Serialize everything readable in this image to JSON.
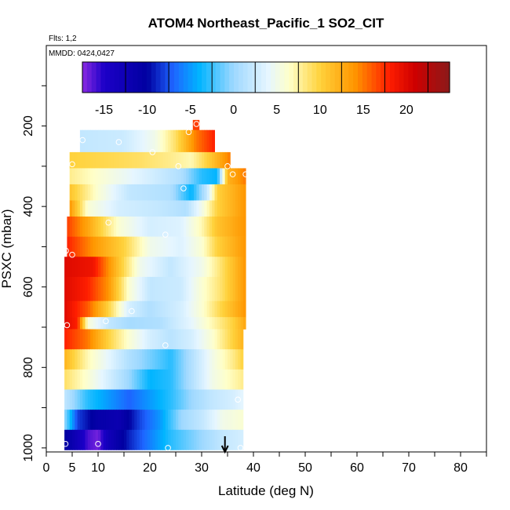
{
  "chart_data": {
    "type": "heatmap",
    "title": "ATOM4 Northeast_Pacific_1 SO2_CIT",
    "flights_text": "Flts: 1,2",
    "dates_text": "MMDD: 0424,0427",
    "xlabel": "Latitude (deg N)",
    "ylabel": "PSXC (mbar)",
    "xlim": [
      0,
      85
    ],
    "ylim": [
      1010,
      0
    ],
    "x_ticks": [
      0,
      5,
      10,
      20,
      30,
      40,
      50,
      60,
      70,
      80
    ],
    "y_ticks": [
      200,
      400,
      600,
      800,
      1000
    ],
    "colorbar": {
      "range": [
        -17.5,
        25
      ],
      "ticks": [
        -15,
        -10,
        -5,
        0,
        5,
        10,
        15,
        20
      ],
      "colors": [
        {
          "value": -17.5,
          "color": "#8a2be2"
        },
        {
          "value": -15,
          "color": "#1c00c8"
        },
        {
          "value": -10,
          "color": "#0000a0"
        },
        {
          "value": -7,
          "color": "#1e64ff"
        },
        {
          "value": -4,
          "color": "#00b4ff"
        },
        {
          "value": 0,
          "color": "#9ed8ff"
        },
        {
          "value": 4,
          "color": "#e6f6ff"
        },
        {
          "value": 6.5,
          "color": "#ffffc8"
        },
        {
          "value": 10,
          "color": "#ffd23c"
        },
        {
          "value": 14,
          "color": "#ff9600"
        },
        {
          "value": 18,
          "color": "#ff1e00"
        },
        {
          "value": 21,
          "color": "#cd0000"
        },
        {
          "value": 25,
          "color": "#8b1a1a"
        }
      ]
    },
    "rows": [
      {
        "p": [
          185,
          210
        ],
        "x": [
          28.3,
          29.5
        ],
        "v": [
          [
            28.3,
            17
          ]
        ]
      },
      {
        "p": [
          210,
          265
        ],
        "x": [
          6.5,
          32.5
        ],
        "v": [
          [
            6.5,
            2
          ],
          [
            15,
            2.5
          ],
          [
            21,
            5
          ],
          [
            25,
            9
          ],
          [
            29,
            15
          ],
          [
            32.5,
            18
          ]
        ]
      },
      {
        "p": [
          265,
          305
        ],
        "x": [
          4.5,
          35.5
        ],
        "v": [
          [
            4.5,
            10
          ],
          [
            12,
            9.5
          ],
          [
            18,
            9
          ],
          [
            24,
            8
          ],
          [
            28,
            7
          ],
          [
            32,
            11
          ],
          [
            35.5,
            15
          ]
        ]
      },
      {
        "p": [
          305,
          345
        ],
        "x": [
          4.5,
          38.5
        ],
        "v": [
          [
            4.5,
            8
          ],
          [
            12,
            5.5
          ],
          [
            20,
            3
          ],
          [
            26,
            1
          ],
          [
            30,
            -3
          ],
          [
            33,
            -4
          ],
          [
            35,
            12
          ],
          [
            38.5,
            15
          ]
        ]
      },
      {
        "p": [
          345,
          385
        ],
        "x": [
          4.5,
          38.5
        ],
        "v": [
          [
            4.5,
            11
          ],
          [
            10,
            6
          ],
          [
            16,
            2
          ],
          [
            24,
            1
          ],
          [
            28,
            -4
          ],
          [
            31,
            2
          ],
          [
            33,
            10
          ],
          [
            38.5,
            14
          ]
        ]
      },
      {
        "p": [
          385,
          425
        ],
        "x": [
          4.5,
          38.5
        ],
        "v": [
          [
            4.5,
            14
          ],
          [
            8,
            6
          ],
          [
            14,
            3
          ],
          [
            22,
            2
          ],
          [
            27,
            1
          ],
          [
            30,
            5
          ],
          [
            33,
            10
          ],
          [
            38.5,
            14
          ]
        ]
      },
      {
        "p": [
          425,
          475
        ],
        "x": [
          4,
          38.5
        ],
        "v": [
          [
            4,
            17
          ],
          [
            8,
            13
          ],
          [
            14,
            6
          ],
          [
            20,
            3
          ],
          [
            26,
            3.5
          ],
          [
            30,
            7
          ],
          [
            33,
            11
          ],
          [
            38.5,
            14
          ]
        ]
      },
      {
        "p": [
          475,
          525
        ],
        "x": [
          4,
          38.5
        ],
        "v": [
          [
            4,
            18
          ],
          [
            9,
            14
          ],
          [
            15,
            10
          ],
          [
            20,
            5
          ],
          [
            26,
            3.5
          ],
          [
            30,
            6
          ],
          [
            33,
            10
          ],
          [
            38.5,
            14
          ]
        ]
      },
      {
        "p": [
          525,
          575
        ],
        "x": [
          3.5,
          38.5
        ],
        "v": [
          [
            3.5,
            20
          ],
          [
            9,
            19
          ],
          [
            14,
            11
          ],
          [
            18,
            5
          ],
          [
            24,
            2
          ],
          [
            30,
            5
          ],
          [
            34,
            9
          ],
          [
            38.5,
            14
          ]
        ]
      },
      {
        "p": [
          575,
          635
        ],
        "x": [
          3.5,
          38.5
        ],
        "v": [
          [
            3.5,
            20
          ],
          [
            8,
            18
          ],
          [
            12,
            14
          ],
          [
            16,
            6
          ],
          [
            20,
            2
          ],
          [
            26,
            2.5
          ],
          [
            30,
            6
          ],
          [
            34,
            9
          ],
          [
            38.5,
            14
          ]
        ]
      },
      {
        "p": [
          635,
          675
        ],
        "x": [
          3.5,
          38.5
        ],
        "v": [
          [
            3.5,
            20
          ],
          [
            8,
            16
          ],
          [
            12,
            10
          ],
          [
            16,
            3
          ],
          [
            20,
            1
          ],
          [
            26,
            3
          ],
          [
            30,
            6
          ],
          [
            34,
            10
          ],
          [
            38.5,
            14
          ]
        ]
      },
      {
        "p": [
          675,
          705
        ],
        "x": [
          3.5,
          38.5
        ],
        "v": [
          [
            3.5,
            20
          ],
          [
            6,
            18
          ],
          [
            8,
            6
          ],
          [
            10,
            4
          ],
          [
            12,
            2
          ],
          [
            16,
            0.5
          ],
          [
            22,
            1
          ],
          [
            28,
            4
          ],
          [
            32,
            7
          ],
          [
            36,
            10
          ],
          [
            38.5,
            13
          ]
        ]
      },
      {
        "p": [
          705,
          755
        ],
        "x": [
          3.5,
          38
        ],
        "v": [
          [
            3.5,
            18
          ],
          [
            8,
            15
          ],
          [
            12,
            10
          ],
          [
            16,
            6
          ],
          [
            20,
            3
          ],
          [
            24,
            1.5
          ],
          [
            28,
            3
          ],
          [
            32,
            6
          ],
          [
            36,
            10
          ],
          [
            38,
            12
          ]
        ]
      },
      {
        "p": [
          755,
          805
        ],
        "x": [
          3.5,
          38
        ],
        "v": [
          [
            3.5,
            12
          ],
          [
            8,
            7
          ],
          [
            12,
            4
          ],
          [
            16,
            1
          ],
          [
            20,
            -1
          ],
          [
            24,
            -3
          ],
          [
            28,
            1
          ],
          [
            32,
            5
          ],
          [
            36,
            8
          ],
          [
            38,
            10
          ]
        ]
      },
      {
        "p": [
          805,
          855
        ],
        "x": [
          3.5,
          38
        ],
        "v": [
          [
            3.5,
            9
          ],
          [
            8,
            6
          ],
          [
            12,
            3
          ],
          [
            16,
            0
          ],
          [
            20,
            -4
          ],
          [
            24,
            -3
          ],
          [
            28,
            1
          ],
          [
            32,
            5
          ],
          [
            36,
            7
          ],
          [
            38,
            8
          ]
        ]
      },
      {
        "p": [
          855,
          905
        ],
        "x": [
          3.5,
          38
        ],
        "v": [
          [
            3.5,
            2
          ],
          [
            8,
            -3
          ],
          [
            12,
            -5
          ],
          [
            16,
            -7
          ],
          [
            20,
            -5
          ],
          [
            24,
            -3
          ],
          [
            28,
            0
          ],
          [
            32,
            2
          ],
          [
            36,
            3
          ],
          [
            38,
            4
          ]
        ]
      },
      {
        "p": [
          905,
          955
        ],
        "x": [
          3.5,
          38
        ],
        "v": [
          [
            3.5,
            0
          ],
          [
            6,
            -8
          ],
          [
            10,
            -11
          ],
          [
            14,
            -12
          ],
          [
            18,
            -8
          ],
          [
            22,
            -5
          ],
          [
            26,
            0
          ],
          [
            30,
            2
          ],
          [
            34,
            5
          ],
          [
            38,
            6
          ]
        ]
      },
      {
        "p": [
          955,
          1005
        ],
        "x": [
          3.5,
          38
        ],
        "v": [
          [
            3.5,
            -10
          ],
          [
            6,
            -13
          ],
          [
            8,
            -16
          ],
          [
            10,
            -17
          ],
          [
            12,
            -13
          ],
          [
            16,
            -9
          ],
          [
            20,
            -6
          ],
          [
            24,
            -3
          ],
          [
            28,
            -1
          ],
          [
            30,
            0
          ],
          [
            34,
            2
          ],
          [
            38,
            3
          ]
        ]
      }
    ],
    "markers": [
      [
        29,
        195
      ],
      [
        27.5,
        215
      ],
      [
        7,
        235
      ],
      [
        14,
        240
      ],
      [
        20.5,
        265
      ],
      [
        5,
        295
      ],
      [
        25.5,
        300
      ],
      [
        35,
        300
      ],
      [
        36,
        320
      ],
      [
        38.5,
        320
      ],
      [
        26.5,
        355
      ],
      [
        12,
        440
      ],
      [
        23,
        470
      ],
      [
        3.8,
        510
      ],
      [
        5,
        520
      ],
      [
        4,
        695
      ],
      [
        11.5,
        685
      ],
      [
        16.5,
        660
      ],
      [
        23,
        745
      ],
      [
        37,
        880
      ],
      [
        3.7,
        990
      ],
      [
        10,
        990
      ],
      [
        23.5,
        1000
      ],
      [
        37.5,
        1000
      ]
    ],
    "arrow_latitude": 34.5
  }
}
